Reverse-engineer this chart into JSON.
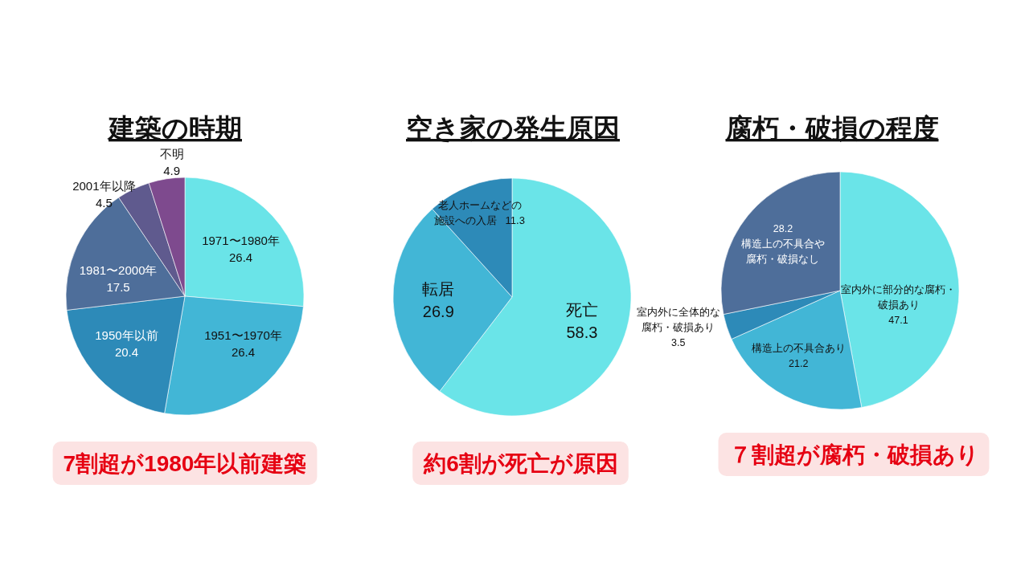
{
  "chart_data": [
    {
      "type": "pie",
      "title": "建築の時期",
      "categories": [
        "1971〜1980年",
        "1951〜1970年",
        "1950年以前",
        "1981〜2000年",
        "2001年以降",
        "不明"
      ],
      "values": [
        26.4,
        26.4,
        20.4,
        17.5,
        4.5,
        4.9
      ],
      "colors": [
        "#6ae4e8",
        "#42b6d6",
        "#2d8ab8",
        "#4e6e9a",
        "#5f5a8e",
        "#7e4a8e"
      ],
      "data_labels": true,
      "annotations": [
        "7割超が1980年以前建築"
      ]
    },
    {
      "type": "pie",
      "title": "空き家の発生原因",
      "categories": [
        "死亡",
        "転居",
        "老人ホームなどの施設への入居"
      ],
      "values": [
        58.3,
        26.9,
        11.3
      ],
      "colors": [
        "#6ae4e8",
        "#42b6d6",
        "#2d8ab8"
      ],
      "data_labels": true,
      "annotations": [
        "約6割が死亡が原因"
      ]
    },
    {
      "type": "pie",
      "title": "腐朽・破損の程度",
      "categories": [
        "室内外に部分的な腐朽・破損あり",
        "構造上の不具合あり",
        "室内外に全体的な腐朽・破損あり",
        "構造上の不具合や腐朽・破損なし"
      ],
      "values": [
        47.1,
        21.2,
        3.5,
        28.2
      ],
      "colors": [
        "#6ae4e8",
        "#42b6d6",
        "#2d8ab8",
        "#4e6e9a"
      ],
      "data_labels": true,
      "annotations": [
        "７割超が腐朽・破損あり"
      ]
    }
  ]
}
